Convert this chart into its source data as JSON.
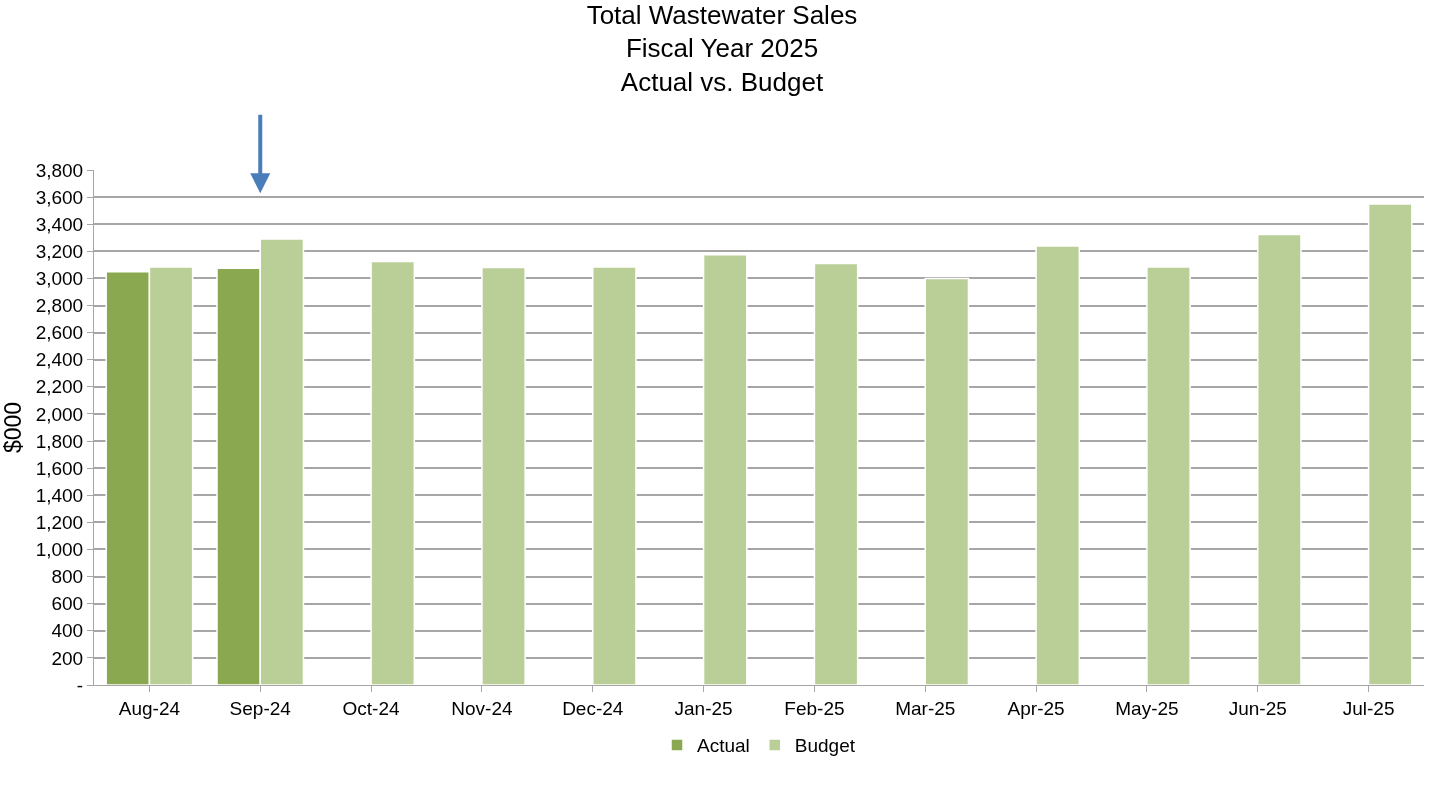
{
  "chart_data": {
    "type": "bar",
    "title": "Total Wastewater Sales\nFiscal Year 2025\nActual vs. Budget",
    "ylabel": "$000",
    "categories": [
      "Aug-24",
      "Sep-24",
      "Oct-24",
      "Nov-24",
      "Dec-24",
      "Jan-25",
      "Feb-25",
      "Mar-25",
      "Apr-25",
      "May-25",
      "Jun-25",
      "Jul-25"
    ],
    "series": [
      {
        "name": "Actual",
        "color": "#8aa84f",
        "values": [
          3050,
          3075,
          null,
          null,
          null,
          null,
          null,
          null,
          null,
          null,
          null,
          null
        ]
      },
      {
        "name": "Budget",
        "color": "#bacf97",
        "values": [
          3085,
          3290,
          3125,
          3080,
          3085,
          3175,
          3110,
          3000,
          3240,
          3085,
          3325,
          3550
        ]
      }
    ],
    "ylim": [
      0,
      3800
    ],
    "yticks": [
      {
        "value": 0,
        "label": "-"
      },
      {
        "value": 200,
        "label": "200"
      },
      {
        "value": 400,
        "label": "400"
      },
      {
        "value": 600,
        "label": "600"
      },
      {
        "value": 800,
        "label": "800"
      },
      {
        "value": 1000,
        "label": "1,000"
      },
      {
        "value": 1200,
        "label": "1,200"
      },
      {
        "value": 1400,
        "label": "1,400"
      },
      {
        "value": 1600,
        "label": "1,600"
      },
      {
        "value": 1800,
        "label": "1,800"
      },
      {
        "value": 2000,
        "label": "2,000"
      },
      {
        "value": 2200,
        "label": "2,200"
      },
      {
        "value": 2400,
        "label": "2,400"
      },
      {
        "value": 2600,
        "label": "2,600"
      },
      {
        "value": 2800,
        "label": "2,800"
      },
      {
        "value": 3000,
        "label": "3,000"
      },
      {
        "value": 3200,
        "label": "3,200"
      },
      {
        "value": 3400,
        "label": "3,400"
      },
      {
        "value": 3600,
        "label": "3,600"
      },
      {
        "value": 3800,
        "label": "3,800"
      }
    ],
    "grid": "y",
    "legend": "bottom"
  }
}
